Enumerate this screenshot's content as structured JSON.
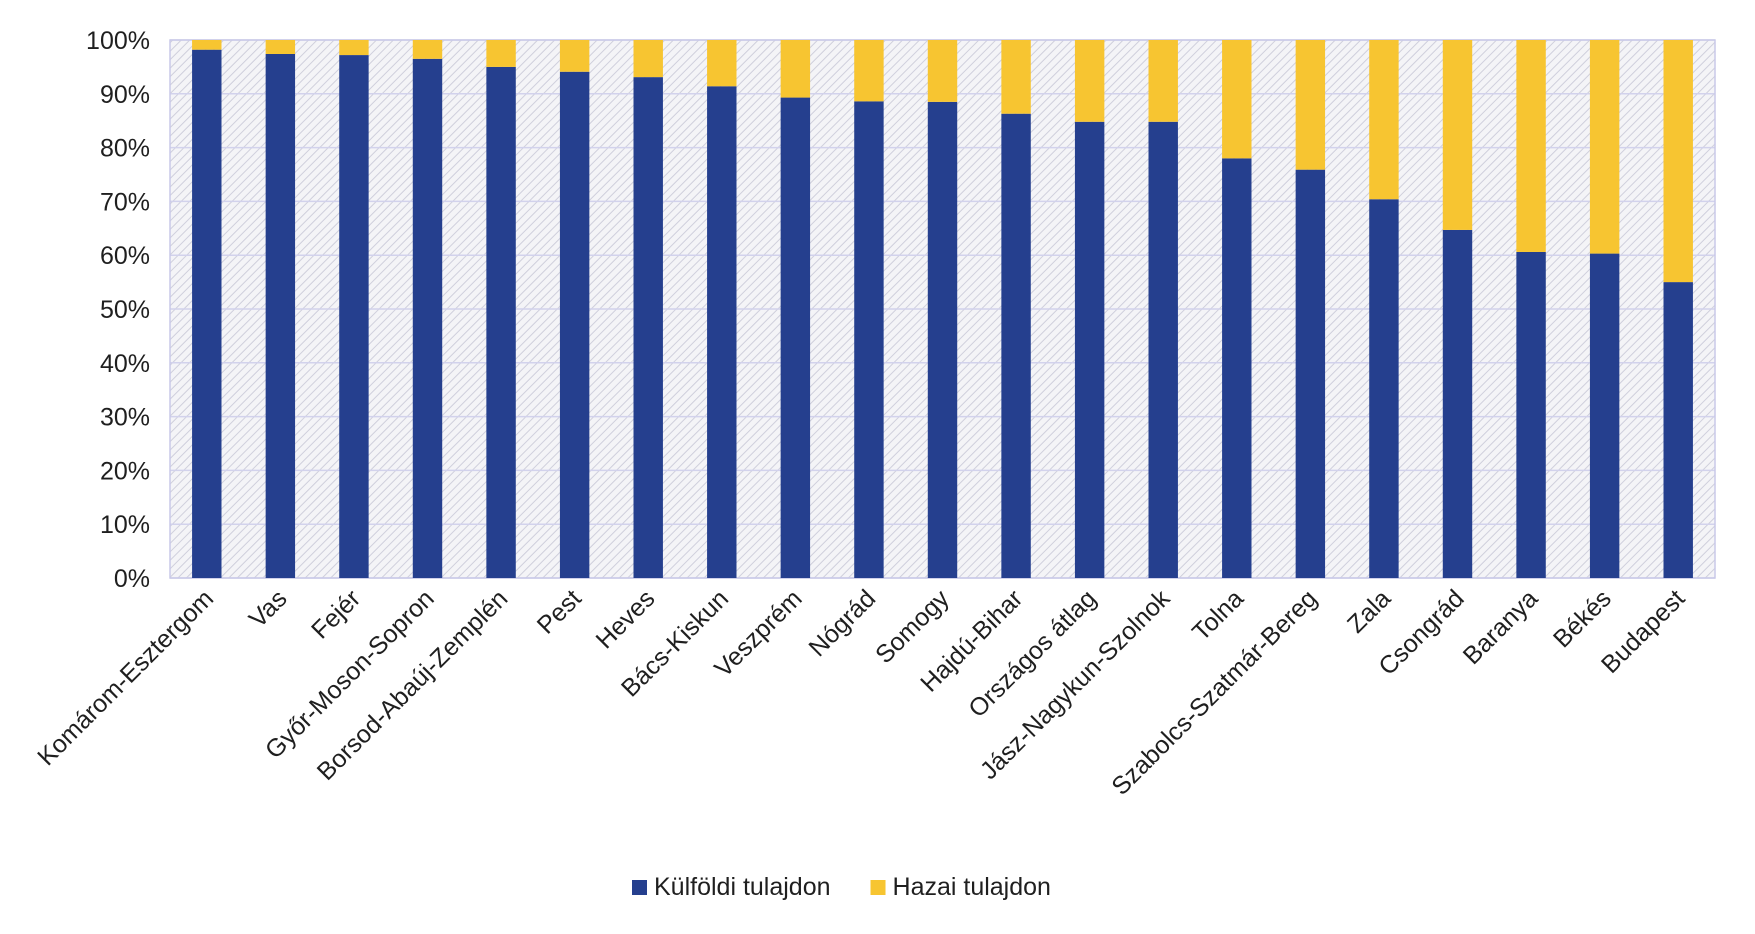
{
  "chart_data": {
    "type": "bar",
    "stacked": true,
    "title": "",
    "xlabel": "",
    "ylabel": "",
    "ylim": [
      0,
      100
    ],
    "yticks": [
      "0%",
      "10%",
      "20%",
      "30%",
      "40%",
      "50%",
      "60%",
      "70%",
      "80%",
      "90%",
      "100%"
    ],
    "grid": true,
    "legend_position": "bottom",
    "categories": [
      "Komárom-Esztergom",
      "Vas",
      "Fejér",
      "Győr-Moson-Sopron",
      "Borsod-Abaúj-Zemplén",
      "Pest",
      "Heves",
      "Bács-Kiskun",
      "Veszprém",
      "Nógrád",
      "Somogy",
      "Hajdú-Bihar",
      "Országos átlag",
      "Jász-Nagykun-Szolnok",
      "Tolna",
      "Szabolcs-Szatmár-Bereg",
      "Zala",
      "Csongrád",
      "Baranya",
      "Békés",
      "Budapest"
    ],
    "series": [
      {
        "name": "Külföldi tulajdon",
        "color": "#253f8e",
        "values": [
          98.2,
          97.4,
          97.2,
          96.5,
          95.0,
          94.1,
          93.1,
          91.4,
          89.3,
          88.6,
          88.5,
          86.3,
          84.8,
          84.8,
          78.0,
          75.9,
          70.4,
          64.7,
          60.6,
          60.3,
          55.0
        ]
      },
      {
        "name": "Hazai tulajdon",
        "color": "#f7c531",
        "values": [
          1.8,
          2.6,
          2.8,
          3.5,
          5.0,
          5.9,
          6.9,
          8.6,
          10.7,
          11.4,
          11.5,
          13.7,
          15.2,
          15.2,
          22.0,
          24.1,
          29.6,
          35.3,
          39.4,
          39.7,
          45.0
        ]
      }
    ]
  }
}
